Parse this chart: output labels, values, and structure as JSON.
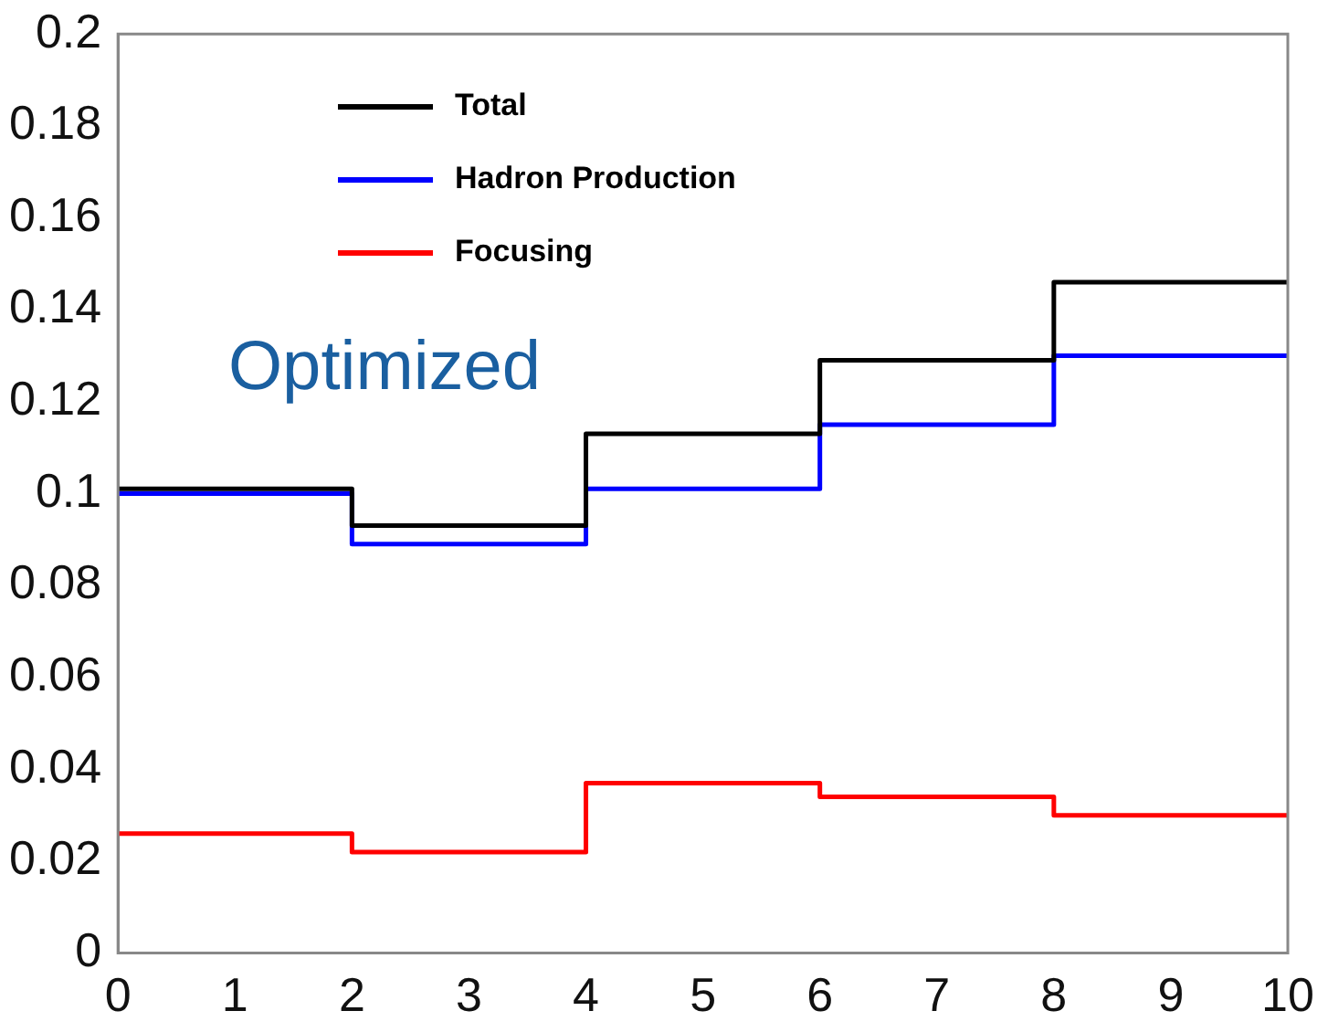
{
  "chart_data": {
    "type": "histogram",
    "bins": [
      0,
      2,
      4,
      6,
      8,
      10
    ],
    "xlim": [
      0,
      10
    ],
    "xticks": [
      0,
      1,
      2,
      3,
      4,
      5,
      6,
      7,
      8,
      9,
      10
    ],
    "ylim": [
      0,
      0.2
    ],
    "yticks": [
      0,
      0.02,
      0.04,
      0.06,
      0.08,
      0.1,
      0.12,
      0.14,
      0.16,
      0.18,
      0.2
    ],
    "grid": false,
    "legend": "top left",
    "marker": "none",
    "line_style": "solid",
    "annotations": [
      "Optimized"
    ],
    "series": [
      {
        "name": "Total",
        "color": "#000000",
        "values": [
          0.101,
          0.093,
          0.113,
          0.129,
          0.146
        ]
      },
      {
        "name": "Hadron Production",
        "color": "#0000ff",
        "values": [
          0.1,
          0.089,
          0.101,
          0.115,
          0.13
        ]
      },
      {
        "name": "Focusing",
        "color": "#ff0000",
        "values": [
          0.026,
          0.022,
          0.037,
          0.034,
          0.03
        ]
      }
    ]
  }
}
